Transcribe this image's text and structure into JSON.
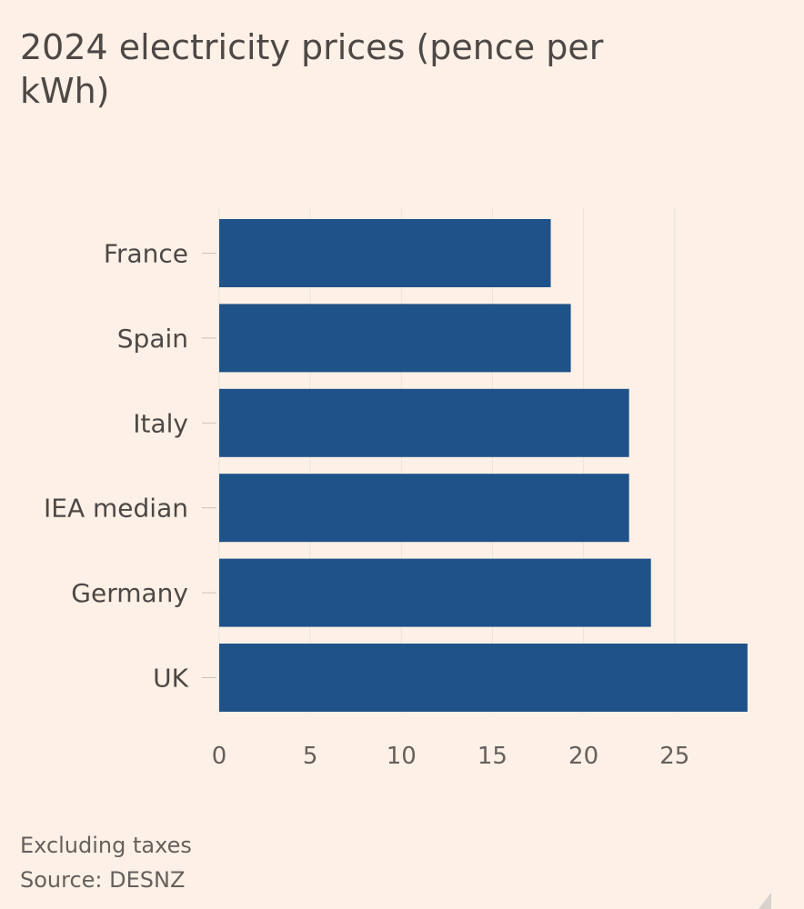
{
  "chart_data": {
    "type": "bar",
    "orientation": "horizontal",
    "title": "2024 electricity prices (pence per kWh)",
    "categories": [
      "France",
      "Spain",
      "Italy",
      "IEA median",
      "Germany",
      "UK"
    ],
    "values": [
      18.2,
      19.3,
      22.5,
      22.5,
      23.7,
      29.0
    ],
    "xlim": [
      0,
      29
    ],
    "xticks": [
      "0",
      "5",
      "10",
      "15",
      "20",
      "25"
    ],
    "grid": true,
    "bar_color": "#1f5289"
  },
  "footer": {
    "note": "Excluding taxes",
    "source": "Source: DESNZ"
  }
}
